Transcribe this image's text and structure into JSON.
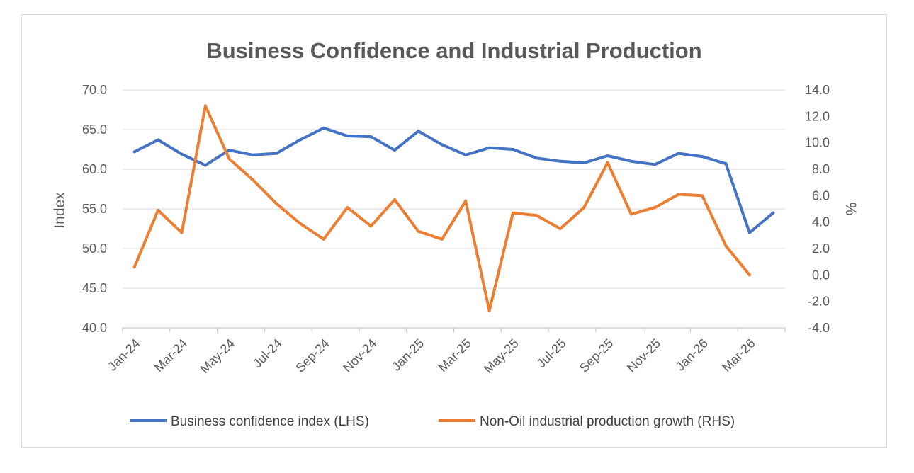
{
  "chart_data": {
    "type": "line",
    "title": "Business Confidence and Industrial Production",
    "ylabel": "Index",
    "y2label": "%",
    "ylim": [
      40,
      70
    ],
    "y_ticks": [
      "40.0",
      "45.0",
      "50.0",
      "55.0",
      "60.0",
      "65.0",
      "70.0"
    ],
    "y2lim": [
      -4,
      14
    ],
    "y2_ticks": [
      "-4.0",
      "-2.0",
      "0.0",
      "2.0",
      "4.0",
      "6.0",
      "8.0",
      "10.0",
      "12.0",
      "14.0"
    ],
    "x": [
      "Jan-24",
      "Feb-24",
      "Mar-24",
      "Apr-24",
      "May-24",
      "Jun-24",
      "Jul-24",
      "Aug-24",
      "Sep-24",
      "Oct-24",
      "Nov-24",
      "Dec-24",
      "Jan-25",
      "Feb-25",
      "Mar-25",
      "Apr-25",
      "May-25",
      "Jun-25",
      "Jul-25",
      "Aug-25",
      "Sep-25",
      "Oct-25",
      "Nov-25",
      "Dec-25",
      "Jan-26",
      "Feb-26",
      "Mar-26",
      "Apr-26"
    ],
    "x_tick_labels": [
      "Jan-24",
      "Mar-24",
      "May-24",
      "Jul-24",
      "Sep-24",
      "Nov-24",
      "Jan-25",
      "Mar-25",
      "May-25",
      "Jul-25",
      "Sep-25",
      "Nov-25",
      "Jan-26",
      "Mar-26"
    ],
    "grid": true,
    "legend_position": "bottom",
    "series": [
      {
        "name": "Business confidence index (LHS)",
        "axis": "left",
        "color": "#4472C4",
        "values": [
          62.2,
          63.7,
          61.9,
          60.5,
          62.4,
          61.8,
          62.0,
          63.7,
          65.2,
          64.2,
          64.1,
          62.4,
          64.8,
          63.1,
          61.8,
          62.7,
          62.5,
          61.4,
          61.0,
          60.8,
          61.7,
          61.0,
          60.6,
          62.0,
          61.6,
          60.7,
          52.0,
          54.5
        ]
      },
      {
        "name": "Non-Oil industrial production growth (RHS)",
        "axis": "right",
        "color": "#ED7D31",
        "values": [
          0.6,
          4.9,
          3.2,
          12.8,
          8.8,
          7.2,
          5.4,
          3.9,
          2.7,
          5.1,
          3.7,
          5.7,
          3.3,
          2.7,
          5.6,
          -2.7,
          4.7,
          4.5,
          3.5,
          5.1,
          8.5,
          4.6,
          5.1,
          6.1,
          6.0,
          2.2,
          0.0,
          null
        ]
      }
    ]
  }
}
